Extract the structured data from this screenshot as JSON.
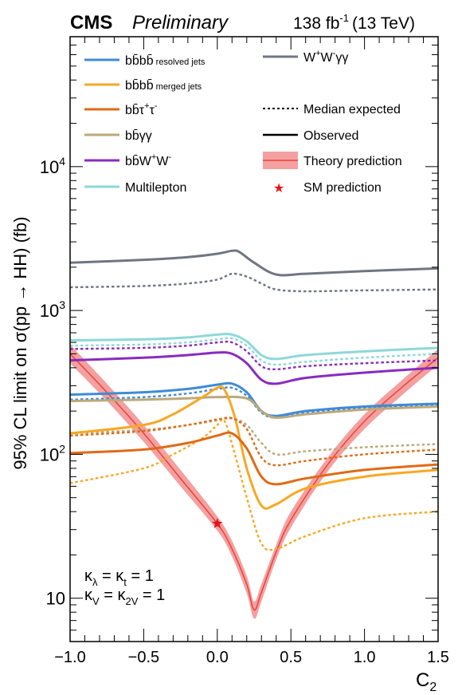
{
  "header": {
    "experiment": "CMS",
    "status": "Preliminary",
    "luminosity": "138 fb",
    "lumi_exponent": "-1",
    "energy": "(13 TeV)"
  },
  "chart_data": {
    "type": "line",
    "xlabel": "C",
    "xlabel_sub": "2",
    "ylabel": "95% CL limit on σ(pp → HH) (fb)",
    "xlim": [
      -1.0,
      1.5
    ],
    "ylim": [
      5,
      80000
    ],
    "yscale": "log",
    "x_ticks": [
      -1.0,
      -0.5,
      0.0,
      0.5,
      1.0,
      1.5
    ],
    "x_tick_labels": [
      "−1.0",
      "−0.5",
      "0.0",
      "0.5",
      "1.0",
      "1.5"
    ],
    "y_ticks": [
      10,
      100,
      1000,
      10000
    ],
    "y_tick_labels": [
      {
        "base": "10",
        "exp": ""
      },
      {
        "base": "10",
        "exp": "2"
      },
      {
        "base": "10",
        "exp": "3"
      },
      {
        "base": "10",
        "exp": "4"
      }
    ],
    "annotation": {
      "line1": {
        "k": "κ",
        "sub1": "λ",
        "mid": " = ",
        "k2": "κ",
        "sub2": "t",
        "end": " = 1"
      },
      "line2": {
        "k": "κ",
        "sub1": "V",
        "mid": " = ",
        "k2": "κ",
        "sub2": "2V",
        "end": " = 1"
      }
    },
    "legend": {
      "placement": "top",
      "entries": [
        {
          "id": "bbbb_res",
          "label": "bb̄bb̄",
          "small": " resolved jets",
          "color": "#3f8bd6",
          "style": "solid"
        },
        {
          "id": "bbbb_merged",
          "label": "bb̄bb̄",
          "small": " merged jets",
          "color": "#f7a823",
          "style": "solid"
        },
        {
          "id": "bbtautau",
          "label": "bb̄τ",
          "sup1": "+",
          "label2": "τ",
          "sup2": "-",
          "color": "#e06a16",
          "style": "solid"
        },
        {
          "id": "bbgg",
          "label": "bb̄γγ",
          "color": "#bca87a",
          "style": "solid"
        },
        {
          "id": "bbww",
          "label": "bb̄W",
          "sup1": "+",
          "label2": "W",
          "sup2": "-",
          "color": "#8a2bbf",
          "style": "solid"
        },
        {
          "id": "multilepton",
          "label": "Multilepton",
          "color": "#8ed8d8",
          "style": "solid"
        },
        {
          "id": "wwgg",
          "label": "W",
          "sup1": "+",
          "label2": "W",
          "sup2": "-",
          "label3": "γγ",
          "color": "#6f7682",
          "style": "solid"
        },
        {
          "id": "median",
          "label": "Median expected",
          "color": "#000000",
          "style": "dashed"
        },
        {
          "id": "observed",
          "label": "Observed",
          "color": "#000000",
          "style": "solid"
        },
        {
          "id": "theory",
          "label": "Theory prediction",
          "color": "#e8443a",
          "band_color": "#f4a0a0",
          "style": "band"
        },
        {
          "id": "sm",
          "label": "SM prediction",
          "color": "#e8141a",
          "style": "star"
        }
      ]
    },
    "sm_point": {
      "x": 0.0,
      "y": 33
    },
    "theory": {
      "x": [
        -1.0,
        -0.75,
        -0.5,
        -0.25,
        0.0,
        0.1,
        0.2,
        0.25,
        0.3,
        0.4,
        0.5,
        0.75,
        1.0,
        1.25,
        1.5
      ],
      "central": [
        500,
        270,
        140,
        68,
        33,
        22,
        12.5,
        8.3,
        11,
        21,
        35,
        85,
        170,
        290,
        470
      ],
      "low": [
        430,
        235,
        122,
        60,
        29.5,
        19.5,
        10.8,
        7.2,
        9.5,
        18.5,
        31,
        76,
        150,
        255,
        420
      ],
      "high": [
        580,
        310,
        160,
        78,
        37,
        25,
        14.3,
        9.5,
        12.6,
        23.5,
        40,
        95,
        190,
        325,
        540
      ]
    },
    "series": [
      {
        "id": "wwgg",
        "name": "W+W-γγ",
        "kind": "observed",
        "color": "#6f7682",
        "x": [
          -1.0,
          -0.5,
          -0.2,
          0.0,
          0.1,
          0.15,
          0.25,
          0.4,
          0.6,
          1.0,
          1.5
        ],
        "y": [
          2150,
          2250,
          2350,
          2480,
          2600,
          2550,
          2150,
          1780,
          1800,
          1880,
          1960
        ]
      },
      {
        "id": "wwgg",
        "name": "W+W-γγ",
        "kind": "expected",
        "color": "#6f7682",
        "x": [
          -1.0,
          -0.5,
          -0.2,
          0.0,
          0.1,
          0.2,
          0.3,
          0.4,
          0.6,
          1.0,
          1.5
        ],
        "y": [
          1450,
          1480,
          1540,
          1640,
          1800,
          1720,
          1540,
          1400,
          1360,
          1380,
          1400
        ]
      },
      {
        "id": "multilepton",
        "name": "Multilepton",
        "kind": "observed",
        "color": "#8ed8d8",
        "x": [
          -1.0,
          -0.5,
          -0.2,
          0.0,
          0.1,
          0.2,
          0.3,
          0.4,
          0.6,
          1.0,
          1.5
        ],
        "y": [
          620,
          630,
          650,
          680,
          680,
          610,
          490,
          460,
          490,
          520,
          550
        ]
      },
      {
        "id": "multilepton",
        "name": "Multilepton",
        "kind": "expected",
        "color": "#8ed8d8",
        "x": [
          -1.0,
          -0.5,
          -0.2,
          0.0,
          0.1,
          0.2,
          0.3,
          0.4,
          0.6,
          1.0,
          1.5
        ],
        "y": [
          570,
          580,
          600,
          630,
          640,
          570,
          450,
          420,
          440,
          470,
          500
        ]
      },
      {
        "id": "bbww",
        "name": "bb̄W+W-",
        "kind": "observed",
        "color": "#8a2bbf",
        "x": [
          -1.0,
          -0.5,
          -0.2,
          0.0,
          0.1,
          0.2,
          0.3,
          0.4,
          0.6,
          1.0,
          1.5
        ],
        "y": [
          450,
          470,
          490,
          510,
          500,
          430,
          330,
          310,
          340,
          370,
          400
        ]
      },
      {
        "id": "bbww",
        "name": "bb̄W+W-",
        "kind": "expected",
        "color": "#8a2bbf",
        "x": [
          -1.0,
          -0.5,
          -0.2,
          0.0,
          0.1,
          0.2,
          0.3,
          0.4,
          0.6,
          1.0,
          1.5
        ],
        "y": [
          540,
          550,
          570,
          600,
          600,
          520,
          410,
          390,
          410,
          430,
          450
        ]
      },
      {
        "id": "bbbb_res",
        "name": "bb̄bb̄ resolved jets",
        "kind": "observed",
        "color": "#3f8bd6",
        "x": [
          -1.0,
          -0.5,
          -0.2,
          0.0,
          0.1,
          0.2,
          0.3,
          0.4,
          0.6,
          1.0,
          1.5
        ],
        "y": [
          260,
          270,
          285,
          305,
          310,
          270,
          200,
          185,
          200,
          215,
          225
        ]
      },
      {
        "id": "bbbb_res",
        "name": "bb̄bb̄ resolved jets",
        "kind": "expected",
        "color": "#3f8bd6",
        "x": [
          -1.0,
          -0.5,
          -0.2,
          0.0,
          0.1,
          0.2,
          0.3,
          0.4,
          0.6,
          1.0,
          1.5
        ],
        "y": [
          240,
          250,
          265,
          285,
          290,
          255,
          195,
          180,
          195,
          210,
          220
        ]
      },
      {
        "id": "bbgg",
        "name": "bb̄γγ",
        "kind": "observed",
        "color": "#bca87a",
        "x": [
          -1.0,
          -0.5,
          -0.2,
          0.0,
          0.2,
          0.3,
          0.4,
          0.6,
          1.0,
          1.5
        ],
        "y": [
          235,
          240,
          245,
          250,
          245,
          200,
          180,
          190,
          205,
          215
        ]
      },
      {
        "id": "bbgg",
        "name": "bb̄γγ",
        "kind": "expected",
        "color": "#bca87a",
        "x": [
          -1.0,
          -0.5,
          -0.2,
          0.0,
          0.1,
          0.2,
          0.3,
          0.4,
          0.6,
          1.0,
          1.5
        ],
        "y": [
          140,
          148,
          160,
          172,
          178,
          160,
          120,
          100,
          105,
          112,
          118
        ]
      },
      {
        "id": "bbbb_merged",
        "name": "bb̄bb̄ merged jets",
        "kind": "observed",
        "color": "#f7a823",
        "x": [
          -1.0,
          -0.5,
          -0.3,
          -0.1,
          0.0,
          0.05,
          0.12,
          0.2,
          0.3,
          0.4,
          0.6,
          1.0,
          1.5
        ],
        "y": [
          140,
          160,
          190,
          250,
          290,
          280,
          180,
          80,
          44,
          45,
          58,
          70,
          78
        ]
      },
      {
        "id": "bbbb_merged",
        "name": "bb̄bb̄ merged jets",
        "kind": "expected",
        "color": "#f7a823",
        "x": [
          -1.0,
          -0.5,
          -0.3,
          -0.1,
          0.0,
          0.05,
          0.12,
          0.2,
          0.3,
          0.4,
          0.6,
          1.0,
          1.5
        ],
        "y": [
          63,
          80,
          100,
          130,
          160,
          170,
          100,
          50,
          24,
          22,
          27,
          36,
          40
        ]
      },
      {
        "id": "bbtautau",
        "name": "bb̄τ+τ-",
        "kind": "observed",
        "color": "#e06a16",
        "x": [
          -1.0,
          -0.5,
          -0.2,
          0.0,
          0.1,
          0.2,
          0.3,
          0.4,
          0.6,
          1.0,
          1.5
        ],
        "y": [
          102,
          108,
          120,
          135,
          140,
          110,
          70,
          62,
          68,
          78,
          85
        ]
      },
      {
        "id": "bbtautau",
        "name": "bb̄τ+τ-",
        "kind": "expected",
        "color": "#e06a16",
        "x": [
          -1.0,
          -0.5,
          -0.2,
          0.0,
          0.1,
          0.2,
          0.3,
          0.4,
          0.6,
          1.0,
          1.5
        ],
        "y": [
          135,
          145,
          160,
          175,
          178,
          150,
          95,
          84,
          90,
          100,
          108
        ]
      }
    ]
  }
}
